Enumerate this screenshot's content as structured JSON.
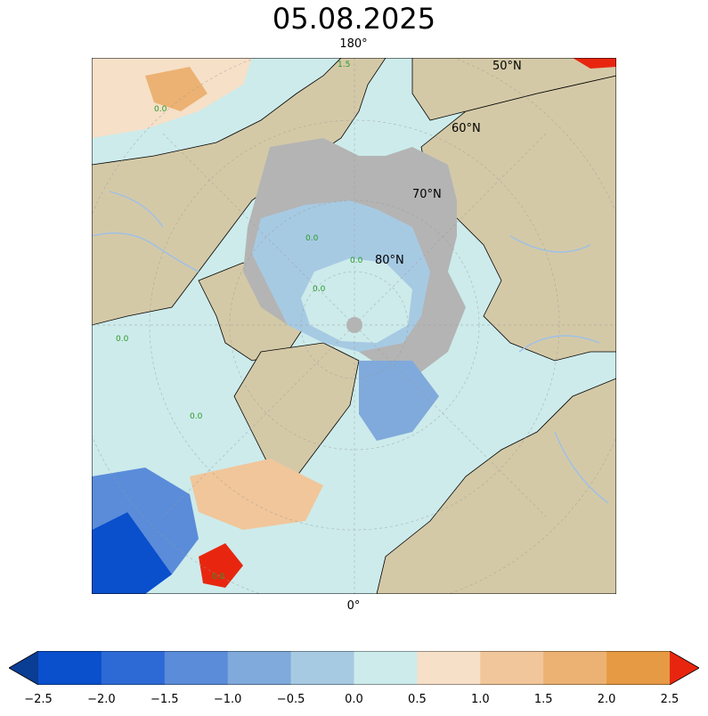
{
  "title": "05.08.2025",
  "map_labels": {
    "lon_top": "180°",
    "lon_bottom": "0°",
    "lat_50": "50°N",
    "lat_60": "60°N",
    "lat_70": "70°N",
    "lat_80": "80°N",
    "contour_zero": "0.0",
    "contour_one": "1.5"
  },
  "colorbar": {
    "ticks": [
      "−2.5",
      "−2.0",
      "−1.5",
      "−1.0",
      "−0.5",
      "0.0",
      "0.5",
      "1.0",
      "1.5",
      "2.0",
      "2.5"
    ],
    "colors": [
      "#0a3d94",
      "#0a4fcc",
      "#2d6ad6",
      "#5a8cd9",
      "#80aadb",
      "#a7cae3",
      "#cdebeb",
      "#f6e0c8",
      "#f1c69a",
      "#ecb273",
      "#e69a43",
      "#e8260f"
    ],
    "extend": "both"
  },
  "palette": {
    "land": "#d4c9a7",
    "ice": "#b4b4b4",
    "rivers": "#9dc0e8",
    "contour_text": "#2a9a2a"
  }
}
